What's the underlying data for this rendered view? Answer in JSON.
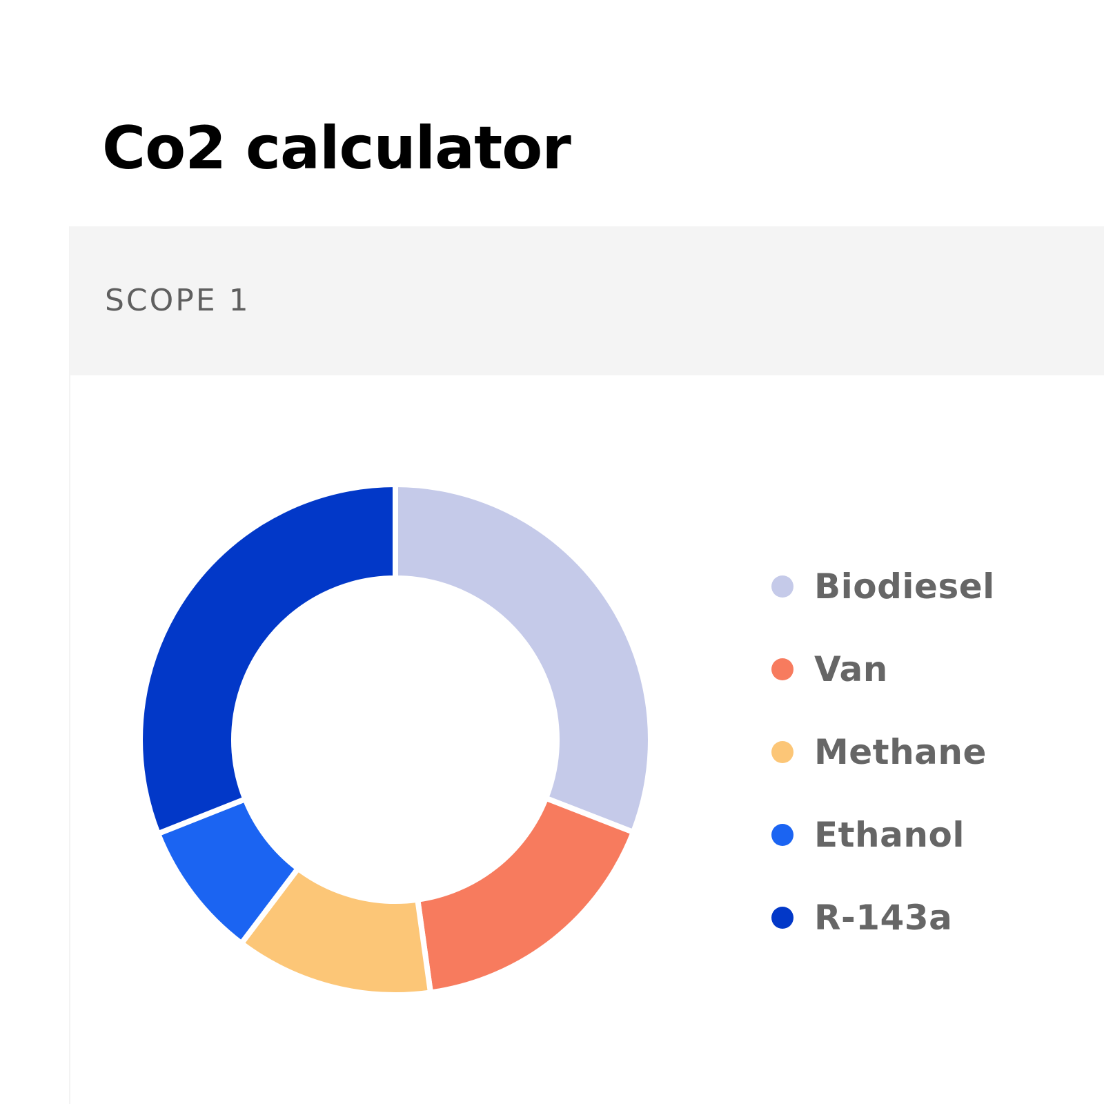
{
  "title": "Co2 calculator",
  "section": {
    "label": "SCOPE 1"
  },
  "chart_data": {
    "type": "pie",
    "donut": true,
    "start_angle_deg": 0,
    "direction": "clockwise",
    "categories": [
      "Biodiesel",
      "Van",
      "Methane",
      "Ethanol",
      "R-143a"
    ],
    "values": [
      30.9,
      16.9,
      12.5,
      8.7,
      31.0
    ],
    "colors": [
      "#c5cae9",
      "#f77b5e",
      "#fcc677",
      "#1b64f2",
      "#0238c8"
    ],
    "legend": "right"
  }
}
